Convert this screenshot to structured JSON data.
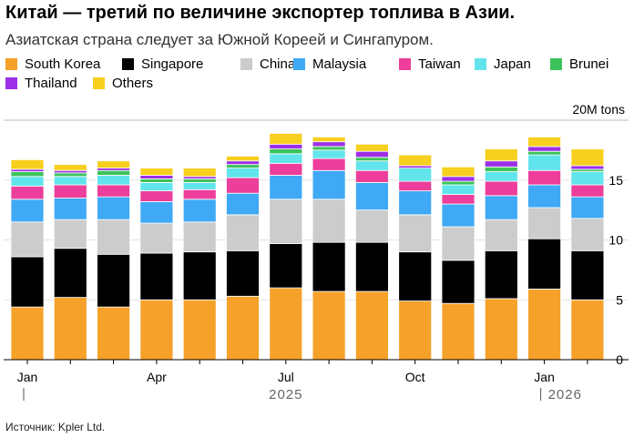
{
  "header": {
    "title": "Китай — третий по величине экспортер топлива в Азии.",
    "subtitle": "Азиатская страна следует за Южной Кореей и Сингапуром."
  },
  "footer": {
    "source": "Источник: Kpler Ltd."
  },
  "chart_data": {
    "type": "bar",
    "stacked": true,
    "unit_label": "20M tons",
    "ylim": [
      0,
      20
    ],
    "yticks": [
      0,
      5,
      10,
      15
    ],
    "categories": [
      "2025-01",
      "2025-02",
      "2025-03",
      "2025-04",
      "2025-05",
      "2025-06",
      "2025-07",
      "2025-08",
      "2025-09",
      "2025-10",
      "2025-11",
      "2025-12",
      "2026-01",
      "2026-02"
    ],
    "xtick_labels": [
      {
        "index": 0,
        "label": "Jan"
      },
      {
        "index": 3,
        "label": "Apr"
      },
      {
        "index": 6,
        "label": "Jul"
      },
      {
        "index": 9,
        "label": "Oct"
      },
      {
        "index": 12,
        "label": "Jan"
      }
    ],
    "year_labels": [
      {
        "index": 0,
        "label": "",
        "separator": true
      },
      {
        "index": 6,
        "label": "2025",
        "separator": false
      },
      {
        "index": 12,
        "label": "2026",
        "separator": true
      }
    ],
    "series": [
      {
        "name": "South Korea",
        "color": "#f5a12a",
        "values": [
          4.4,
          5.2,
          4.4,
          5.0,
          5.0,
          5.3,
          6.0,
          5.7,
          5.7,
          4.9,
          4.7,
          5.1,
          5.9,
          5.0
        ]
      },
      {
        "name": "Singapore",
        "color": "#000000",
        "values": [
          4.2,
          4.1,
          4.4,
          3.9,
          4.0,
          3.8,
          3.7,
          4.1,
          4.1,
          4.1,
          3.6,
          4.0,
          4.2,
          4.1
        ]
      },
      {
        "name": "China",
        "color": "#cccccc",
        "values": [
          2.9,
          2.4,
          2.9,
          2.5,
          2.5,
          3.0,
          3.7,
          3.6,
          2.7,
          3.1,
          2.8,
          2.6,
          2.6,
          2.7
        ]
      },
      {
        "name": "Malaysia",
        "color": "#3fa9f5",
        "values": [
          1.9,
          1.8,
          1.9,
          1.8,
          1.9,
          1.8,
          2.0,
          2.4,
          2.3,
          2.0,
          1.9,
          2.0,
          1.9,
          1.8
        ]
      },
      {
        "name": "Taiwan",
        "color": "#ec3e9a",
        "values": [
          1.1,
          1.1,
          1.0,
          0.9,
          0.8,
          1.3,
          1.0,
          1.0,
          1.0,
          0.8,
          0.8,
          1.2,
          1.2,
          1.0
        ]
      },
      {
        "name": "Japan",
        "color": "#62e4ec",
        "values": [
          0.8,
          0.7,
          0.8,
          0.7,
          0.6,
          0.8,
          0.8,
          0.7,
          0.8,
          1.1,
          0.8,
          0.8,
          1.3,
          1.1
        ]
      },
      {
        "name": "Brunei",
        "color": "#3cc35a",
        "values": [
          0.4,
          0.3,
          0.4,
          0.3,
          0.3,
          0.3,
          0.4,
          0.3,
          0.3,
          0.0,
          0.3,
          0.4,
          0.3,
          0.2
        ]
      },
      {
        "name": "Thailand",
        "color": "#9b30e6",
        "values": [
          0.2,
          0.2,
          0.2,
          0.3,
          0.2,
          0.3,
          0.4,
          0.4,
          0.5,
          0.2,
          0.4,
          0.5,
          0.4,
          0.3
        ]
      },
      {
        "name": "Others",
        "color": "#f7cf1e",
        "values": [
          0.8,
          0.5,
          0.6,
          0.6,
          0.7,
          0.4,
          0.9,
          0.4,
          0.6,
          0.9,
          0.8,
          1.0,
          0.8,
          1.4
        ]
      }
    ]
  }
}
